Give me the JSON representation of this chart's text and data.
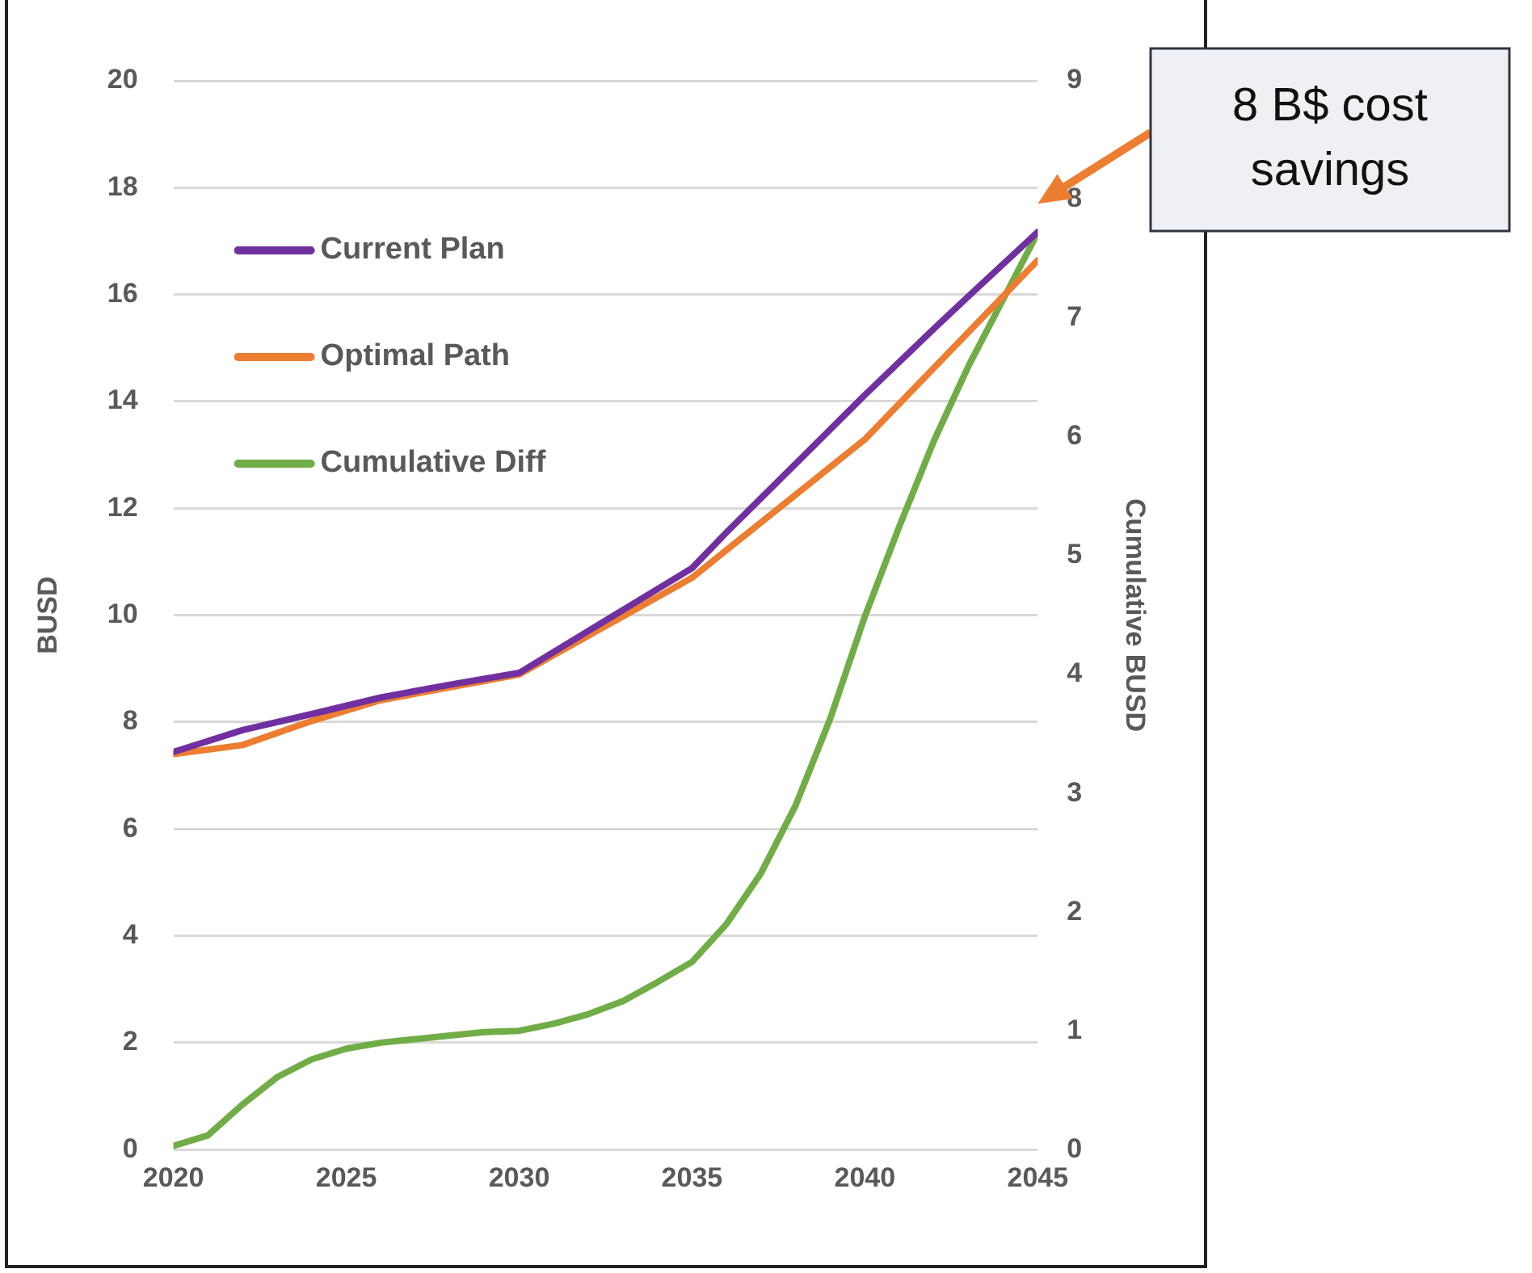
{
  "chart_data": {
    "type": "line",
    "x": [
      2020,
      2021,
      2022,
      2023,
      2024,
      2025,
      2026,
      2027,
      2028,
      2029,
      2030,
      2031,
      2032,
      2033,
      2034,
      2035,
      2036,
      2037,
      2038,
      2039,
      2040,
      2041,
      2042,
      2043,
      2044,
      2045
    ],
    "series": [
      {
        "name": "Current Plan",
        "color": "#7030a0",
        "x": [
          2020,
          2022,
          2024,
          2026,
          2028,
          2030,
          2035,
          2036,
          2040,
          2042,
          2043,
          2045
        ],
        "values": [
          7.44,
          7.85,
          8.15,
          8.46,
          8.7,
          8.92,
          10.88,
          11.55,
          14.12,
          15.36,
          15.97,
          17.17
        ]
      },
      {
        "name": "Optimal Path",
        "color": "#ed7d31",
        "x": [
          2020,
          2022,
          2024,
          2026,
          2028,
          2030,
          2035,
          2036,
          2040,
          2043,
          2045
        ],
        "values": [
          7.4,
          7.57,
          8.02,
          8.41,
          8.65,
          8.89,
          10.7,
          11.22,
          13.29,
          15.3,
          16.64
        ]
      },
      {
        "name": "Cumulative Diff",
        "color": "#70ad47",
        "axis": "y2",
        "values": [
          0.03,
          0.12,
          0.38,
          0.61,
          0.76,
          0.85,
          0.9,
          0.93,
          0.96,
          0.99,
          1.0,
          1.06,
          1.14,
          1.25,
          1.41,
          1.58,
          1.9,
          2.33,
          2.9,
          3.63,
          4.49,
          5.25,
          5.97,
          6.6,
          7.16,
          7.72
        ]
      }
    ],
    "xlim": [
      2020,
      2045
    ],
    "xticks": [
      2020,
      2025,
      2030,
      2035,
      2040,
      2045
    ],
    "ylim": [
      0,
      20
    ],
    "yticks": [
      0,
      2,
      4,
      6,
      8,
      10,
      12,
      14,
      16,
      18,
      20
    ],
    "y2lim": [
      0,
      9
    ],
    "y2ticks": [
      0,
      1,
      2,
      3,
      4,
      5,
      6,
      7,
      8,
      9
    ],
    "ylabel": "BUSD",
    "y2label": "Cumulative BUSD",
    "grid": "y",
    "legend": "top left",
    "marker": "none",
    "line_style": "solid",
    "annotations": [
      "8 B$ cost savings"
    ]
  }
}
